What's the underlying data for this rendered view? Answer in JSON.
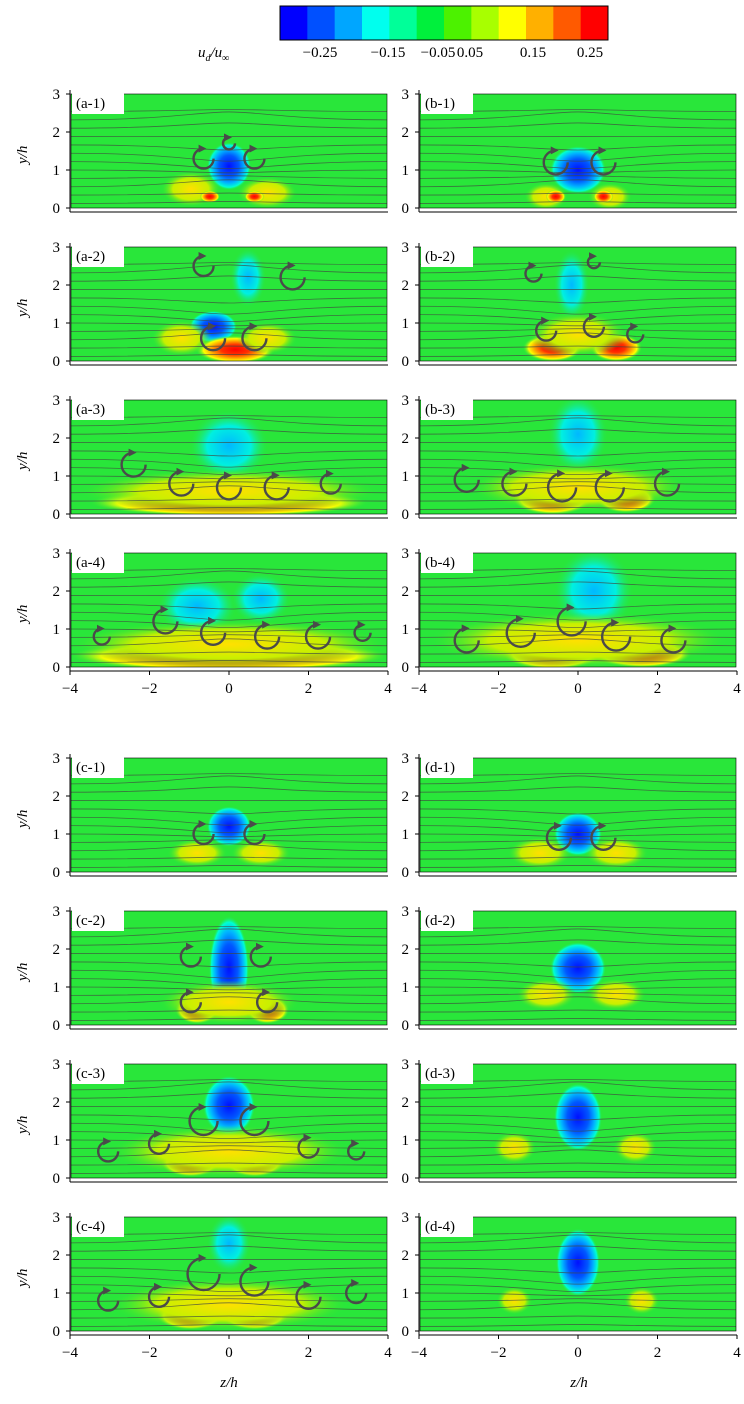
{
  "colorbar": {
    "label_num": "u",
    "label_num_sub": "d",
    "label_den": "u",
    "label_den_sub": "∞",
    "ticks": [
      "−0.25",
      "−0.15",
      "−0.05",
      "0.05",
      "0.15",
      "0.25"
    ],
    "colors": [
      "#0000ff",
      "#0050ff",
      "#00a6ff",
      "#00ffee",
      "#00ff99",
      "#00f03c",
      "#4cf200",
      "#a8ff00",
      "#ffff00",
      "#ffb000",
      "#ff5a00",
      "#ff0000"
    ]
  },
  "axes": {
    "y_label_var": "y",
    "y_label_den": "h",
    "z_label_var": "z",
    "z_label_den": "h",
    "y_ticks": [
      "0",
      "1",
      "2",
      "3"
    ],
    "z_ticks": [
      "−4",
      "−2",
      "0",
      "2",
      "4"
    ]
  },
  "panels": [
    {
      "tag": "(a-1)"
    },
    {
      "tag": "(b-1)"
    },
    {
      "tag": "(a-2)"
    },
    {
      "tag": "(b-2)"
    },
    {
      "tag": "(a-3)"
    },
    {
      "tag": "(b-3)"
    },
    {
      "tag": "(a-4)"
    },
    {
      "tag": "(b-4)"
    },
    {
      "tag": "(c-1)"
    },
    {
      "tag": "(d-1)"
    },
    {
      "tag": "(c-2)"
    },
    {
      "tag": "(d-2)"
    },
    {
      "tag": "(c-3)"
    },
    {
      "tag": "(d-3)"
    },
    {
      "tag": "(c-4)"
    },
    {
      "tag": "(d-4)"
    }
  ],
  "field": {
    "background": "#29e63a",
    "contour_color": "#404a40",
    "vector_color": "#4a4a4a"
  }
}
